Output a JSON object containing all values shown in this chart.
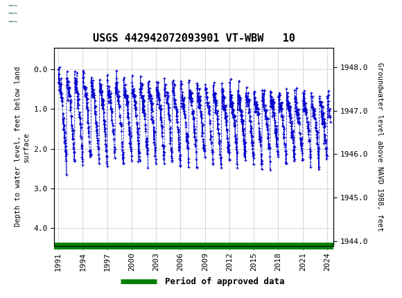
{
  "title": "USGS 442942072093901 VT-WBW   10",
  "ylabel_left": "Depth to water level, feet below land\nsurface",
  "ylabel_right": "Groundwater level above NAVD 1988, feet",
  "ylim_left": [
    4.45,
    -0.55
  ],
  "ylim_right": [
    1943.89,
    1948.45
  ],
  "xlim": [
    1990.5,
    2024.8
  ],
  "yticks_left": [
    0.0,
    1.0,
    2.0,
    3.0,
    4.0
  ],
  "yticks_right": [
    1944.0,
    1945.0,
    1946.0,
    1947.0,
    1948.0
  ],
  "xticks": [
    1991,
    1994,
    1997,
    2000,
    2003,
    2006,
    2009,
    2012,
    2015,
    2018,
    2021,
    2024
  ],
  "header_color": "#1a6b3c",
  "header_text_color": "#ffffff",
  "data_color": "#0000cc",
  "approved_color": "#008000",
  "legend_label": "Period of approved data",
  "background_color": "#ffffff",
  "grid_color": "#c8c8c8",
  "tick_fontsize": 8,
  "label_fontsize": 7.5
}
